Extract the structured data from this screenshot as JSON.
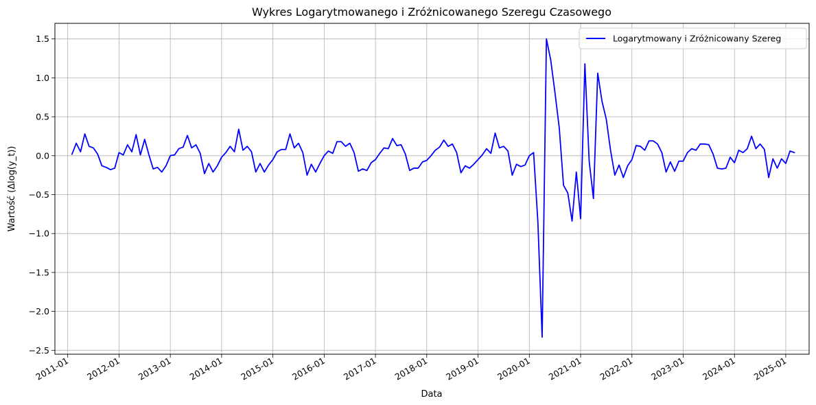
{
  "chart_data": {
    "type": "line",
    "title": "Wykres Logarytmowanego i Zróżnicowanego Szeregu Czasowego",
    "xlabel": "Data",
    "ylabel": "Wartość (Δlog(y_t))",
    "xlim": [
      "2010-10-01",
      "2025-06-15"
    ],
    "ylim": [
      -2.55,
      1.7
    ],
    "x_ticks": [
      "2011-01",
      "2012-01",
      "2013-01",
      "2014-01",
      "2015-01",
      "2016-01",
      "2017-01",
      "2018-01",
      "2019-01",
      "2020-01",
      "2021-01",
      "2022-01",
      "2023-01",
      "2024-01",
      "2025-01"
    ],
    "y_ticks": [
      1.5,
      1.0,
      0.5,
      0.0,
      -0.5,
      -1.0,
      -1.5,
      -2.0,
      -2.5
    ],
    "y_tick_labels": [
      "1.5",
      "1.0",
      "0.5",
      "0.0",
      "−0.5",
      "−1.0",
      "−1.5",
      "−2.0",
      "−2.5"
    ],
    "grid": true,
    "legend_position": "top-right",
    "color": "#0000ff",
    "series": [
      {
        "name": "Logarytmowany i Zróżnicowany Szereg",
        "x": [
          "2011-02",
          "2011-03",
          "2011-04",
          "2011-05",
          "2011-06",
          "2011-07",
          "2011-08",
          "2011-09",
          "2011-10",
          "2011-11",
          "2011-12",
          "2012-01",
          "2012-02",
          "2012-03",
          "2012-04",
          "2012-05",
          "2012-06",
          "2012-07",
          "2012-08",
          "2012-09",
          "2012-10",
          "2012-11",
          "2012-12",
          "2013-01",
          "2013-02",
          "2013-03",
          "2013-04",
          "2013-05",
          "2013-06",
          "2013-07",
          "2013-08",
          "2013-09",
          "2013-10",
          "2013-11",
          "2013-12",
          "2014-01",
          "2014-02",
          "2014-03",
          "2014-04",
          "2014-05",
          "2014-06",
          "2014-07",
          "2014-08",
          "2014-09",
          "2014-10",
          "2014-11",
          "2014-12",
          "2015-01",
          "2015-02",
          "2015-03",
          "2015-04",
          "2015-05",
          "2015-06",
          "2015-07",
          "2015-08",
          "2015-09",
          "2015-10",
          "2015-11",
          "2015-12",
          "2016-01",
          "2016-02",
          "2016-03",
          "2016-04",
          "2016-05",
          "2016-06",
          "2016-07",
          "2016-08",
          "2016-09",
          "2016-10",
          "2016-11",
          "2016-12",
          "2017-01",
          "2017-02",
          "2017-03",
          "2017-04",
          "2017-05",
          "2017-06",
          "2017-07",
          "2017-08",
          "2017-09",
          "2017-10",
          "2017-11",
          "2017-12",
          "2018-01",
          "2018-02",
          "2018-03",
          "2018-04",
          "2018-05",
          "2018-06",
          "2018-07",
          "2018-08",
          "2018-09",
          "2018-10",
          "2018-11",
          "2018-12",
          "2019-01",
          "2019-02",
          "2019-03",
          "2019-04",
          "2019-05",
          "2019-06",
          "2019-07",
          "2019-08",
          "2019-09",
          "2019-10",
          "2019-11",
          "2019-12",
          "2020-01",
          "2020-02",
          "2020-03",
          "2020-04",
          "2020-05",
          "2020-06",
          "2020-07",
          "2020-08",
          "2020-09",
          "2020-10",
          "2020-11",
          "2020-12",
          "2021-01",
          "2021-02",
          "2021-03",
          "2021-04",
          "2021-05",
          "2021-06",
          "2021-07",
          "2021-08",
          "2021-09",
          "2021-10",
          "2021-11",
          "2021-12",
          "2022-01",
          "2022-02",
          "2022-03",
          "2022-04",
          "2022-05",
          "2022-06",
          "2022-07",
          "2022-08",
          "2022-09",
          "2022-10",
          "2022-11",
          "2022-12",
          "2023-01",
          "2023-02",
          "2023-03",
          "2023-04",
          "2023-05",
          "2023-06",
          "2023-07",
          "2023-08",
          "2023-09",
          "2023-10",
          "2023-11",
          "2023-12",
          "2024-01",
          "2024-02",
          "2024-03",
          "2024-04",
          "2024-05",
          "2024-06",
          "2024-07",
          "2024-08",
          "2024-09",
          "2024-10",
          "2024-11",
          "2024-12",
          "2025-01",
          "2025-02",
          "2025-03"
        ],
        "values": [
          0.02,
          0.16,
          0.05,
          0.28,
          0.12,
          0.1,
          0.02,
          -0.13,
          -0.15,
          -0.18,
          -0.16,
          0.04,
          0.01,
          0.14,
          0.05,
          0.27,
          0.01,
          0.21,
          0.01,
          -0.17,
          -0.15,
          -0.21,
          -0.13,
          0.0,
          0.01,
          0.09,
          0.11,
          0.26,
          0.1,
          0.14,
          0.03,
          -0.23,
          -0.1,
          -0.21,
          -0.13,
          -0.02,
          0.04,
          0.12,
          0.05,
          0.34,
          0.07,
          0.12,
          0.05,
          -0.21,
          -0.1,
          -0.21,
          -0.12,
          -0.05,
          0.05,
          0.08,
          0.08,
          0.28,
          0.1,
          0.16,
          0.04,
          -0.25,
          -0.11,
          -0.21,
          -0.1,
          0.0,
          0.06,
          0.03,
          0.18,
          0.18,
          0.12,
          0.16,
          0.04,
          -0.2,
          -0.17,
          -0.19,
          -0.09,
          -0.05,
          0.03,
          0.1,
          0.09,
          0.22,
          0.13,
          0.14,
          0.02,
          -0.19,
          -0.16,
          -0.16,
          -0.08,
          -0.06,
          0.0,
          0.07,
          0.11,
          0.2,
          0.12,
          0.15,
          0.04,
          -0.22,
          -0.13,
          -0.16,
          -0.11,
          -0.05,
          0.01,
          0.09,
          0.03,
          0.29,
          0.1,
          0.12,
          0.06,
          -0.25,
          -0.11,
          -0.14,
          -0.12,
          0.0,
          0.04,
          -0.85,
          -2.33,
          1.5,
          1.23,
          0.81,
          0.36,
          -0.38,
          -0.48,
          -0.84,
          -0.21,
          -0.81,
          1.18,
          -0.07,
          -0.55,
          1.06,
          0.7,
          0.47,
          0.07,
          -0.25,
          -0.12,
          -0.28,
          -0.13,
          -0.05,
          0.13,
          0.12,
          0.07,
          0.19,
          0.19,
          0.15,
          0.04,
          -0.21,
          -0.08,
          -0.2,
          -0.07,
          -0.07,
          0.04,
          0.09,
          0.07,
          0.15,
          0.15,
          0.14,
          0.02,
          -0.16,
          -0.17,
          -0.16,
          -0.02,
          -0.09,
          0.07,
          0.04,
          0.09,
          0.25,
          0.09,
          0.15,
          0.08,
          -0.28,
          -0.04,
          -0.16,
          -0.04,
          -0.1,
          0.06,
          0.04
        ]
      }
    ]
  }
}
